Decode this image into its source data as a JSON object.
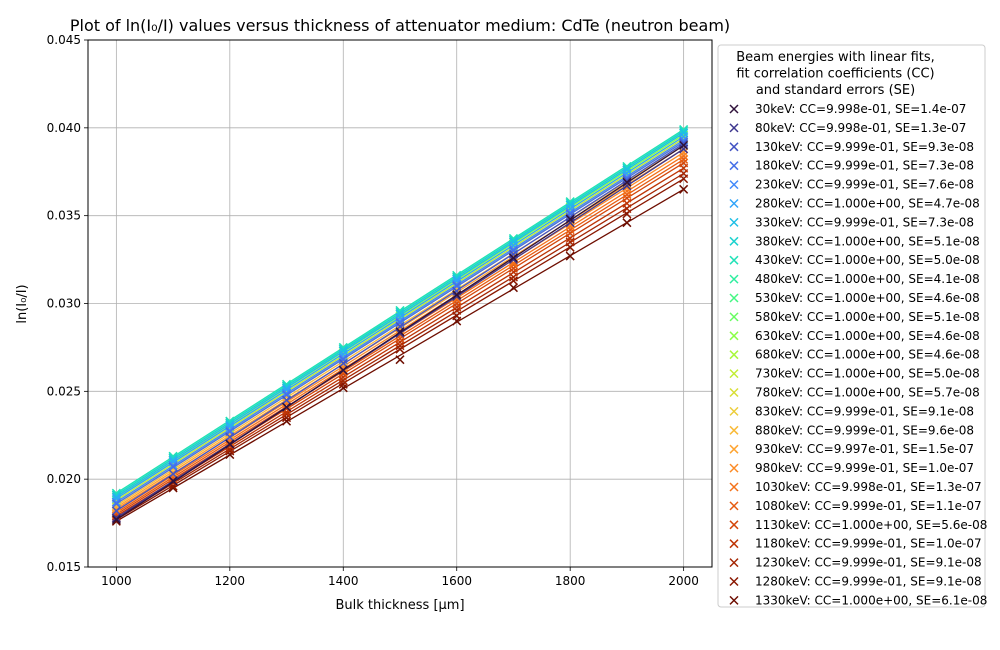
{
  "chart_data": {
    "type": "scatter",
    "title": "Plot of ln(I₀/I) values versus thickness of attenuator medium: CdTe (neutron beam)",
    "xlabel": "Bulk thickness [μm]",
    "ylabel": "ln(I₀/I)",
    "xlim": [
      950,
      2050
    ],
    "ylim": [
      0.015,
      0.045
    ],
    "x_ticks": [
      1000,
      1200,
      1400,
      1600,
      1800,
      2000
    ],
    "y_ticks": [
      0.015,
      0.02,
      0.025,
      0.03,
      0.035,
      0.04,
      0.045
    ],
    "x_tick_labels": [
      "1000",
      "1200",
      "1400",
      "1600",
      "1800",
      "2000"
    ],
    "y_tick_labels": [
      "0.015",
      "0.020",
      "0.025",
      "0.030",
      "0.035",
      "0.040",
      "0.045"
    ],
    "grid": true,
    "legend_position": "outside-right",
    "legend_title": "Beam energies with linear fits,\n fit correlation coefficients (CC)\nand standard errors (SE)",
    "x": [
      1000,
      1100,
      1200,
      1300,
      1400,
      1500,
      1600,
      1700,
      1800,
      1900,
      2000
    ],
    "series": [
      {
        "name": "  30keV: CC=9.998e-01, SE=1.4e-07",
        "color": "#30123b",
        "fit": [
          0.0177,
          0.039
        ],
        "values": [
          0.0177,
          0.0199,
          0.022,
          0.0241,
          0.0262,
          0.0284,
          0.0305,
          0.0326,
          0.0348,
          0.0369,
          0.039
        ]
      },
      {
        "name": "  80keV: CC=9.998e-01, SE=1.3e-07",
        "color": "#3e378f",
        "fit": [
          0.0178,
          0.0388
        ],
        "values": [
          0.0178,
          0.0199,
          0.022,
          0.0241,
          0.0262,
          0.0283,
          0.0304,
          0.0325,
          0.0346,
          0.0367,
          0.0388
        ]
      },
      {
        "name": " 130keV: CC=9.999e-01, SE=9.3e-08",
        "color": "#4454c4",
        "fit": [
          0.0182,
          0.0391
        ],
        "values": [
          0.0182,
          0.0203,
          0.0224,
          0.0245,
          0.0266,
          0.0287,
          0.0307,
          0.0328,
          0.0349,
          0.037,
          0.0391
        ]
      },
      {
        "name": " 180keV: CC=9.999e-01, SE=7.3e-08",
        "color": "#4670e8",
        "fit": [
          0.0186,
          0.0392
        ],
        "values": [
          0.0186,
          0.0207,
          0.0227,
          0.0248,
          0.0268,
          0.0289,
          0.031,
          0.033,
          0.0351,
          0.0371,
          0.0392
        ]
      },
      {
        "name": " 230keV: CC=9.999e-01, SE=7.6e-08",
        "color": "#4189fb",
        "fit": [
          0.0187,
          0.0393
        ],
        "values": [
          0.0187,
          0.0208,
          0.0228,
          0.0249,
          0.0269,
          0.029,
          0.0311,
          0.0331,
          0.0352,
          0.0372,
          0.0393
        ]
      },
      {
        "name": " 280keV: CC=1.000e+00, SE=4.7e-08",
        "color": "#31a4f9",
        "fit": [
          0.0189,
          0.0395
        ],
        "values": [
          0.0189,
          0.021,
          0.023,
          0.0251,
          0.0271,
          0.0292,
          0.0313,
          0.0333,
          0.0354,
          0.0374,
          0.0395
        ]
      },
      {
        "name": " 330keV: CC=9.999e-01, SE=7.3e-08",
        "color": "#1fbfe6",
        "fit": [
          0.019,
          0.0397
        ],
        "values": [
          0.019,
          0.0211,
          0.0231,
          0.0252,
          0.0273,
          0.0294,
          0.0314,
          0.0335,
          0.0356,
          0.0376,
          0.0397
        ]
      },
      {
        "name": " 380keV: CC=1.000e+00, SE=5.1e-08",
        "color": "#1cd2cf",
        "fit": [
          0.0191,
          0.0398
        ],
        "values": [
          0.0191,
          0.0212,
          0.0232,
          0.0253,
          0.0274,
          0.0295,
          0.0315,
          0.0336,
          0.0357,
          0.0377,
          0.0398
        ]
      },
      {
        "name": " 430keV: CC=1.000e+00, SE=5.0e-08",
        "color": "#22e2b8",
        "fit": [
          0.0192,
          0.0399
        ],
        "values": [
          0.0192,
          0.0213,
          0.0233,
          0.0254,
          0.0275,
          0.0296,
          0.0316,
          0.0337,
          0.0358,
          0.0378,
          0.0399
        ]
      },
      {
        "name": " 480keV: CC=1.000e+00, SE=4.1e-08",
        "color": "#2dee9f",
        "fit": [
          0.0192,
          0.0399
        ],
        "values": [
          0.0192,
          0.0213,
          0.0233,
          0.0254,
          0.0275,
          0.0296,
          0.0316,
          0.0337,
          0.0358,
          0.0378,
          0.0399
        ]
      },
      {
        "name": " 530keV: CC=1.000e+00, SE=4.6e-08",
        "color": "#44f782",
        "fit": [
          0.0191,
          0.0398
        ],
        "values": [
          0.0191,
          0.0212,
          0.0232,
          0.0253,
          0.0274,
          0.0295,
          0.0315,
          0.0336,
          0.0357,
          0.0377,
          0.0398
        ]
      },
      {
        "name": " 580keV: CC=1.000e+00, SE=5.1e-08",
        "color": "#67fd61",
        "fit": [
          0.019,
          0.0397
        ],
        "values": [
          0.019,
          0.0211,
          0.0231,
          0.0252,
          0.0273,
          0.0294,
          0.0314,
          0.0335,
          0.0356,
          0.0376,
          0.0397
        ]
      },
      {
        "name": " 630keV: CC=1.000e+00, SE=4.6e-08",
        "color": "#8cfe48",
        "fit": [
          0.019,
          0.0396
        ],
        "values": [
          0.019,
          0.0211,
          0.0231,
          0.0252,
          0.0272,
          0.0293,
          0.0314,
          0.0334,
          0.0355,
          0.0375,
          0.0396
        ]
      },
      {
        "name": " 680keV: CC=1.000e+00, SE=4.6e-08",
        "color": "#a8f83b",
        "fit": [
          0.0189,
          0.0395
        ],
        "values": [
          0.0189,
          0.021,
          0.023,
          0.0251,
          0.0271,
          0.0292,
          0.0313,
          0.0333,
          0.0354,
          0.0374,
          0.0395
        ]
      },
      {
        "name": " 730keV: CC=1.000e+00, SE=5.0e-08",
        "color": "#c2ed34",
        "fit": [
          0.0188,
          0.0394
        ],
        "values": [
          0.0188,
          0.0209,
          0.0229,
          0.025,
          0.027,
          0.0291,
          0.0312,
          0.0332,
          0.0353,
          0.0373,
          0.0394
        ]
      },
      {
        "name": " 780keV: CC=1.000e+00, SE=5.7e-08",
        "color": "#d8de35",
        "fit": [
          0.0187,
          0.0393
        ],
        "values": [
          0.0187,
          0.0208,
          0.0228,
          0.0249,
          0.0269,
          0.029,
          0.0311,
          0.0331,
          0.0352,
          0.0372,
          0.0393
        ]
      },
      {
        "name": " 830keV: CC=9.999e-01, SE=9.1e-08",
        "color": "#eccd3a",
        "fit": [
          0.0186,
          0.0392
        ],
        "values": [
          0.0186,
          0.0207,
          0.0227,
          0.0248,
          0.0268,
          0.0289,
          0.031,
          0.033,
          0.0351,
          0.0371,
          0.0392
        ]
      },
      {
        "name": " 880keV: CC=9.999e-01, SE=9.6e-08",
        "color": "#f9ba38",
        "fit": [
          0.0185,
          0.039
        ],
        "values": [
          0.0185,
          0.0206,
          0.0226,
          0.0247,
          0.0267,
          0.0288,
          0.0308,
          0.0329,
          0.0349,
          0.037,
          0.039
        ]
      },
      {
        "name": " 930keV: CC=9.997e-01, SE=1.5e-07",
        "color": "#fea431",
        "fit": [
          0.0184,
          0.0388
        ],
        "values": [
          0.0184,
          0.0204,
          0.0225,
          0.0245,
          0.0266,
          0.0286,
          0.0306,
          0.0327,
          0.0347,
          0.0368,
          0.0388
        ]
      },
      {
        "name": " 980keV: CC=9.999e-01, SE=1.0e-07",
        "color": "#fc8b26",
        "fit": [
          0.0183,
          0.0386
        ],
        "values": [
          0.0183,
          0.0203,
          0.0224,
          0.0244,
          0.0264,
          0.0285,
          0.0305,
          0.0325,
          0.0345,
          0.0366,
          0.0386
        ]
      },
      {
        "name": "1030keV: CC=9.998e-01, SE=1.3e-07",
        "color": "#f4721b",
        "fit": [
          0.0182,
          0.0384
        ],
        "values": [
          0.0182,
          0.0202,
          0.0222,
          0.0243,
          0.0263,
          0.0283,
          0.0303,
          0.0323,
          0.0344,
          0.0364,
          0.0384
        ]
      },
      {
        "name": "1080keV: CC=9.999e-01, SE=1.1e-07",
        "color": "#e65c12",
        "fit": [
          0.0181,
          0.0382
        ],
        "values": [
          0.0181,
          0.0201,
          0.0221,
          0.0241,
          0.0261,
          0.0282,
          0.0302,
          0.0322,
          0.0342,
          0.0362,
          0.0382
        ]
      },
      {
        "name": "1130keV: CC=1.000e+00, SE=5.6e-08",
        "color": "#d4470b",
        "fit": [
          0.018,
          0.038
        ],
        "values": [
          0.018,
          0.02,
          0.022,
          0.024,
          0.026,
          0.028,
          0.03,
          0.032,
          0.034,
          0.036,
          0.038
        ]
      },
      {
        "name": "1180keV: CC=9.999e-01, SE=1.0e-07",
        "color": "#be3506",
        "fit": [
          0.0179,
          0.0377
        ],
        "values": [
          0.0179,
          0.0199,
          0.0219,
          0.0238,
          0.0258,
          0.0278,
          0.0298,
          0.0318,
          0.0337,
          0.0357,
          0.0377
        ]
      },
      {
        "name": "1230keV: CC=9.999e-01, SE=9.1e-08",
        "color": "#a52603",
        "fit": [
          0.0178,
          0.0374
        ],
        "values": [
          0.0178,
          0.0198,
          0.0217,
          0.0237,
          0.0256,
          0.0276,
          0.0296,
          0.0315,
          0.0335,
          0.0354,
          0.0374
        ]
      },
      {
        "name": "1280keV: CC=9.999e-01, SE=9.1e-08",
        "color": "#8a1801",
        "fit": [
          0.0177,
          0.0371
        ],
        "values": [
          0.0177,
          0.0196,
          0.0216,
          0.0235,
          0.0254,
          0.0274,
          0.0293,
          0.0313,
          0.0332,
          0.0351,
          0.0371
        ]
      },
      {
        "name": "1330keV: CC=1.000e+00, SE=6.1e-08",
        "color": "#6e0e01",
        "fit": [
          0.0176,
          0.0365
        ],
        "values": [
          0.0176,
          0.0195,
          0.0214,
          0.0233,
          0.0252,
          0.0268,
          0.029,
          0.0309,
          0.0327,
          0.0346,
          0.0365
        ]
      }
    ]
  }
}
